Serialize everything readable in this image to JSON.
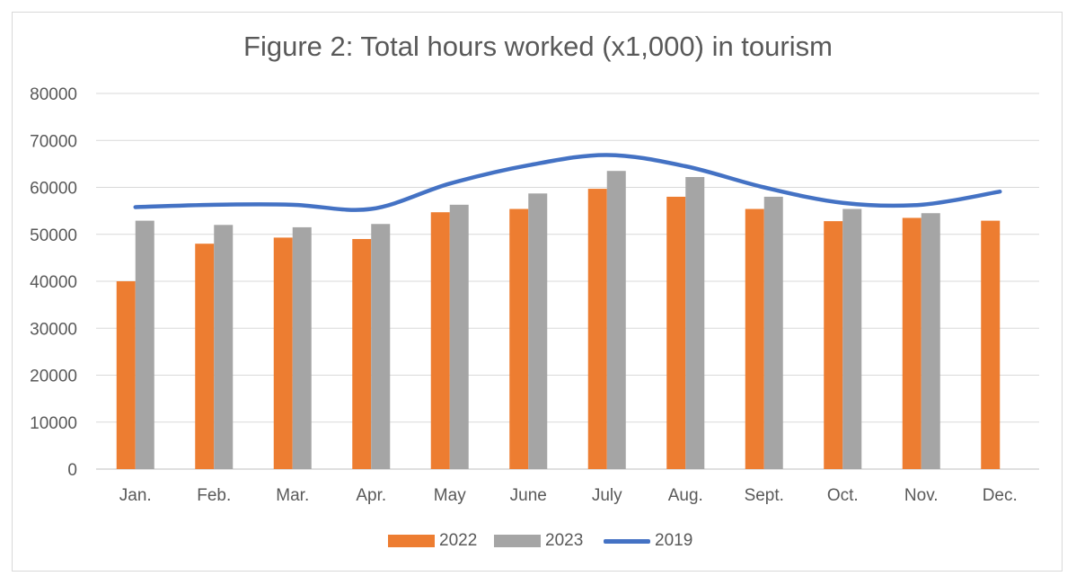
{
  "chart_data": {
    "type": "bar",
    "title": "Figure 2: Total hours worked (x1,000) in tourism",
    "xlabel": "",
    "ylabel": "",
    "ylim": [
      0,
      80000
    ],
    "yticks": [
      0,
      10000,
      20000,
      30000,
      40000,
      50000,
      60000,
      70000,
      80000
    ],
    "grid": true,
    "legend_position": "bottom",
    "categories": [
      "Jan.",
      "Feb.",
      "Mar.",
      "Apr.",
      "May",
      "June",
      "July",
      "Aug.",
      "Sept.",
      "Oct.",
      "Nov.",
      "Dec."
    ],
    "series": [
      {
        "name": "2022",
        "type": "bar",
        "color": "#ed7d31",
        "values": [
          40000,
          48000,
          49300,
          49000,
          54700,
          55400,
          59700,
          58000,
          55400,
          52800,
          53500,
          52900
        ]
      },
      {
        "name": "2023",
        "type": "bar",
        "color": "#a5a5a5",
        "values": [
          52900,
          52000,
          51500,
          52200,
          56300,
          58700,
          63500,
          62200,
          58000,
          55400,
          54500,
          null
        ]
      },
      {
        "name": "2019",
        "type": "line",
        "color": "#4472c4",
        "values": [
          55800,
          56300,
          56300,
          55400,
          60800,
          64700,
          66900,
          64500,
          60000,
          56700,
          56300,
          59100
        ]
      }
    ]
  }
}
